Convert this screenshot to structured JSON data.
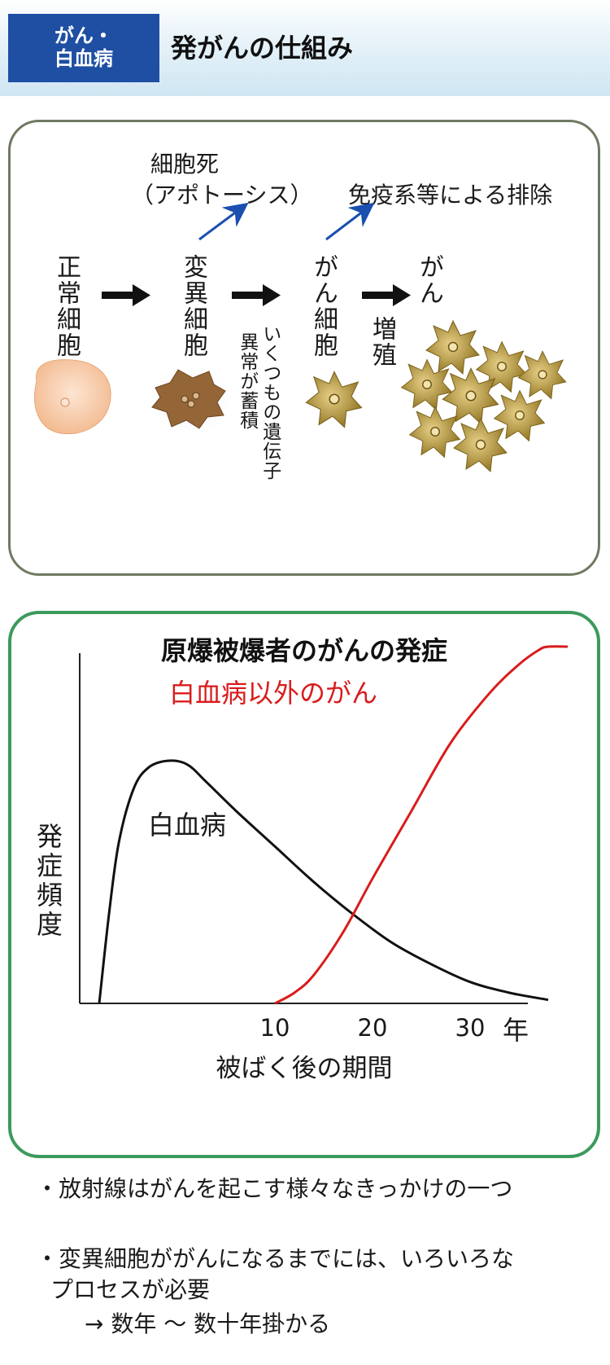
{
  "header": {
    "badge_line1": "がん・",
    "badge_line2": "白血病",
    "title": "発がんの仕組み"
  },
  "process": {
    "apoptosis_label": "細胞死",
    "apoptosis_sub": "（アポトーシス）",
    "immune_label": "免疫系等による排除",
    "stages": [
      "正常細胞",
      "変異細胞",
      "がん細胞",
      "がん"
    ],
    "gene_note_col1": "いくつもの遺伝子",
    "gene_note_col2": "異常が蓄積",
    "growth_label": "増殖",
    "colors": {
      "arrow_blue": "#1a4fb0",
      "normal_cell": "#f6c9a6",
      "mutant_cell": "#9a6a3a",
      "cancer_cell": "#a88a30"
    }
  },
  "chart_data": {
    "type": "line",
    "title": "原爆被爆者のがんの発症",
    "xlabel": "被ばく後の期間",
    "ylabel": "発症頻度",
    "x_unit": "年",
    "x_ticks": [
      "10",
      "20",
      "30"
    ],
    "xlim": [
      -10,
      40
    ],
    "ylim": [
      0,
      1
    ],
    "series": [
      {
        "name": "白血病",
        "color": "#111111",
        "x": [
          -8,
          -7,
          -6,
          -4.5,
          -3,
          -1,
          1,
          3,
          6,
          10,
          14,
          18,
          22,
          26,
          30,
          34,
          38
        ],
        "y": [
          0.0,
          0.25,
          0.45,
          0.6,
          0.66,
          0.68,
          0.67,
          0.62,
          0.54,
          0.44,
          0.34,
          0.25,
          0.17,
          0.11,
          0.06,
          0.03,
          0.01
        ]
      },
      {
        "name": "白血病以外のがん",
        "color": "#d91c1c",
        "x": [
          10,
          12,
          14,
          17,
          20,
          24,
          28,
          32,
          35,
          37,
          38,
          40
        ],
        "y": [
          0.0,
          0.03,
          0.08,
          0.2,
          0.35,
          0.54,
          0.73,
          0.87,
          0.95,
          0.99,
          1.0,
          1.0
        ]
      }
    ]
  },
  "bullets": [
    "・放射線はがんを起こす様々なきっかけの一つ",
    "・変異細胞ががんになるまでには、いろいろな",
    "プロセスが必要",
    "→ 数年 ～ 数十年掛かる"
  ]
}
